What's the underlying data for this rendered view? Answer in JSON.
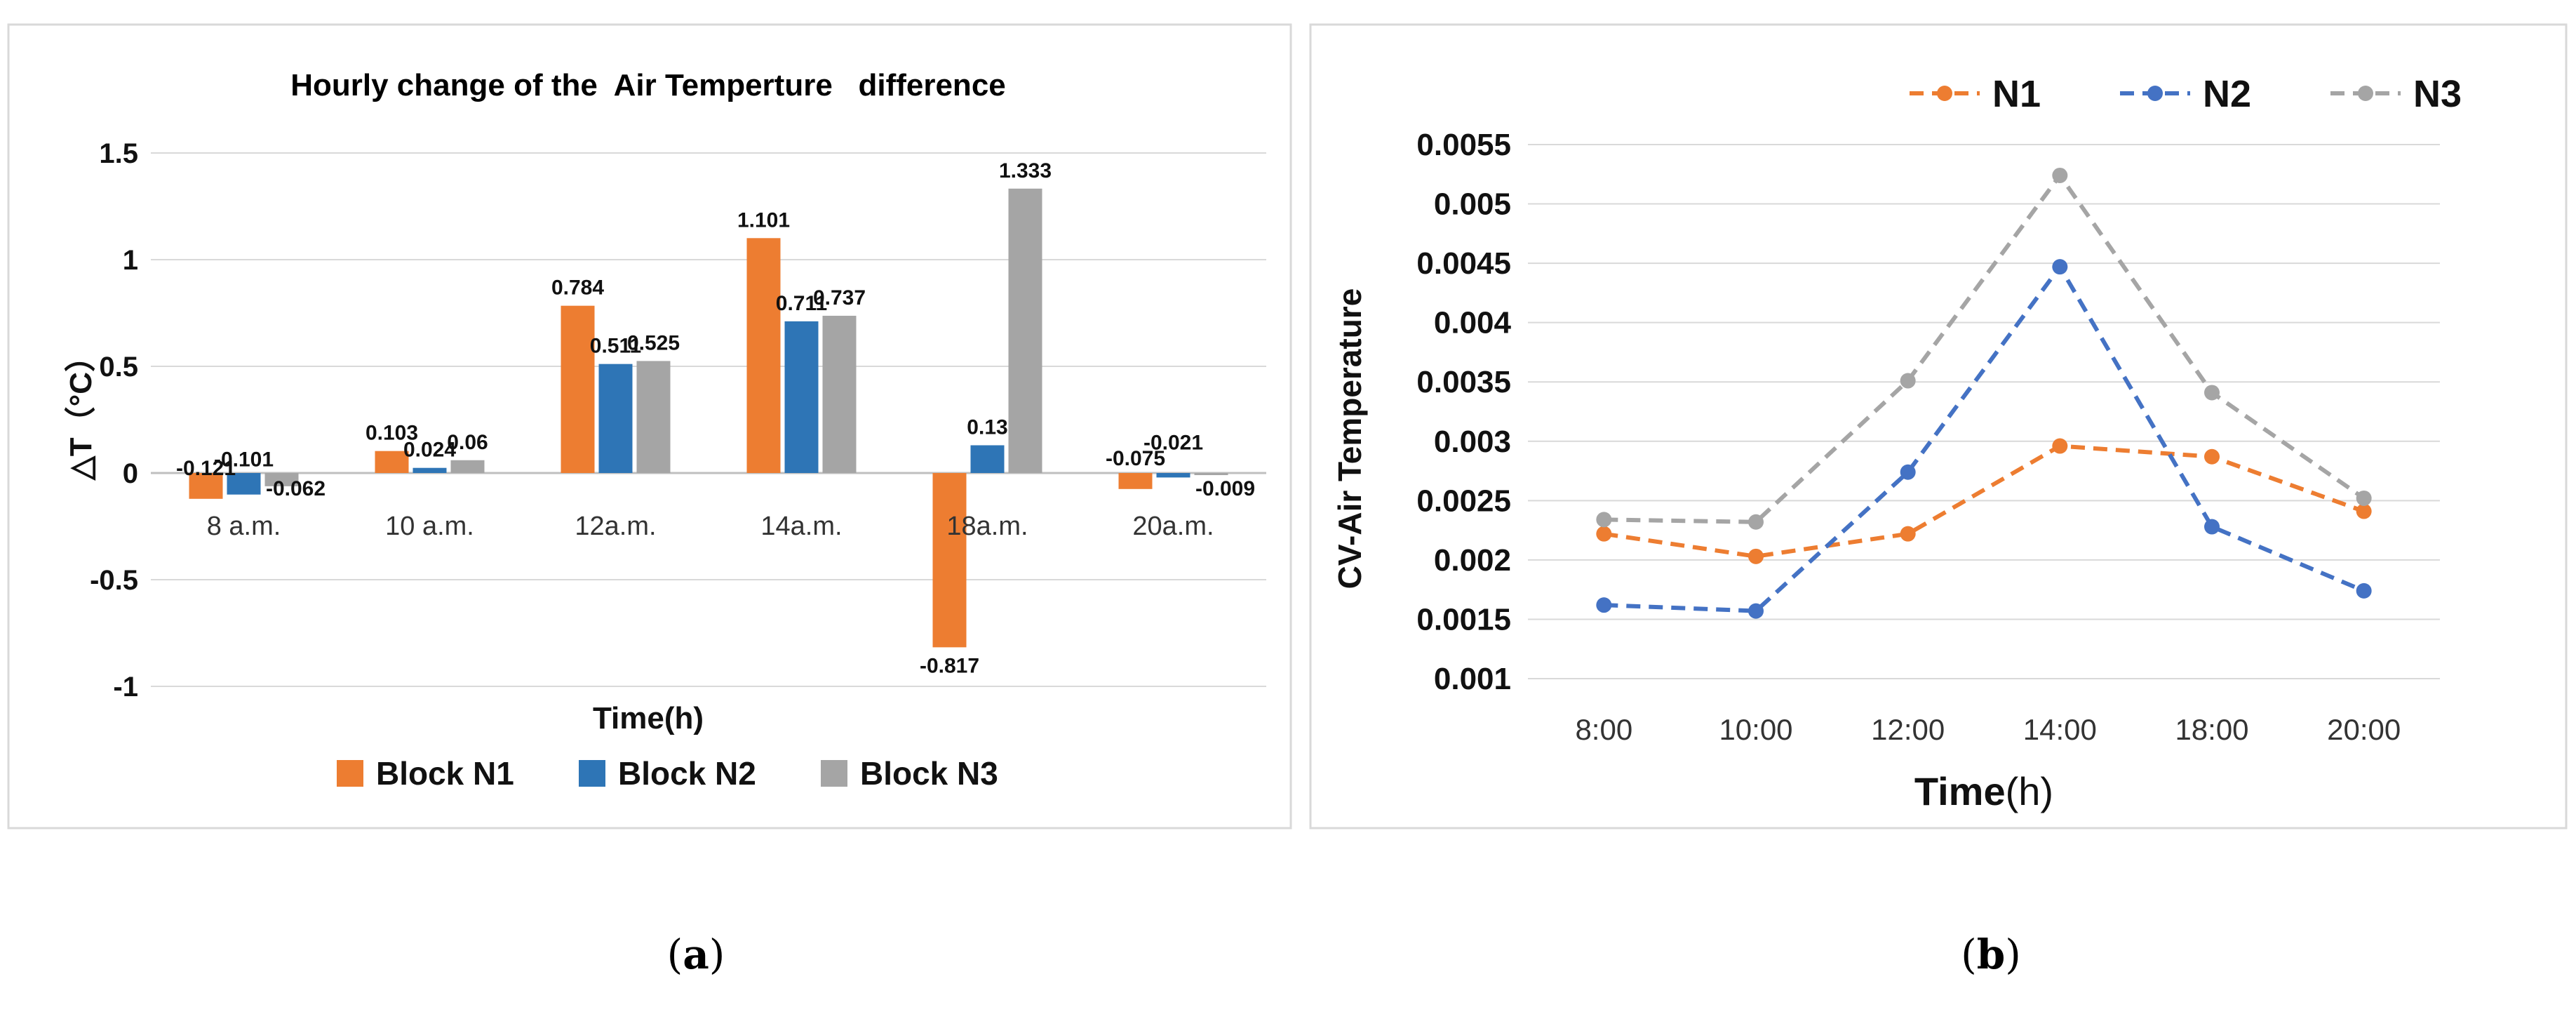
{
  "chart_data": [
    {
      "type": "bar",
      "title": "Hourly change of the  Air Temperture   difference",
      "xlabel": "Time(h)",
      "ylabel": "△T（°C）",
      "ylim": [
        -1,
        1.5
      ],
      "yticks": [
        "1.5",
        "1",
        "0.5",
        "0",
        "-0.5",
        "-1"
      ],
      "categories": [
        "8 a.m.",
        "10 a.m.",
        "12a.m.",
        "14a.m.",
        "18a.m.",
        "20a.m."
      ],
      "series": [
        {
          "name": "Block N1",
          "color": "#ED7D31",
          "values": [
            -0.121,
            0.103,
            0.784,
            1.101,
            -0.817,
            -0.075
          ],
          "labels": [
            "-0.121",
            "0.103",
            "0.784",
            "1.101",
            "-0.817",
            "-0.075"
          ]
        },
        {
          "name": "Block N2",
          "color": "#2E75B6",
          "values": [
            -0.101,
            0.024,
            0.511,
            0.711,
            0.13,
            -0.021
          ],
          "labels": [
            "-0.101",
            "0.024",
            "0.511",
            "0.711",
            "0.13",
            "-0.021"
          ]
        },
        {
          "name": "Block N3",
          "color": "#A5A5A5",
          "values": [
            -0.062,
            0.06,
            0.525,
            0.737,
            1.333,
            -0.009
          ],
          "labels": [
            "-0.062",
            "0.06",
            "0.525",
            "0.737",
            "1.333",
            "-0.009"
          ]
        }
      ],
      "grid": true,
      "legend": "bottom"
    },
    {
      "type": "line",
      "title": "",
      "xlabel_main": "Time",
      "xlabel_unit": "(h)",
      "ylabel": "CV-Air Temperature",
      "ylim": [
        0.001,
        0.0055
      ],
      "yticks": [
        "0.0055",
        "0.005",
        "0.0045",
        "0.004",
        "0.0035",
        "0.003",
        "0.0025",
        "0.002",
        "0.0015",
        "0.001"
      ],
      "categories": [
        "8:00",
        "10:00",
        "12:00",
        "14:00",
        "18:00",
        "20:00"
      ],
      "series": [
        {
          "name": "N1",
          "color": "#ED7D31",
          "values": [
            0.00222,
            0.00203,
            0.00222,
            0.00296,
            0.00287,
            0.00241
          ]
        },
        {
          "name": "N2",
          "color": "#4472C4",
          "values": [
            0.00162,
            0.00157,
            0.00274,
            0.00447,
            0.00228,
            0.00174
          ]
        },
        {
          "name": "N3",
          "color": "#A5A5A5",
          "values": [
            0.00234,
            0.00232,
            0.00351,
            0.00524,
            0.00341,
            0.00252
          ]
        }
      ],
      "line_style": "dashed",
      "grid": true,
      "legend": "top"
    }
  ],
  "panel_labels": {
    "a": {
      "open": "(",
      "letter": "a",
      "close": ")"
    },
    "b": {
      "open": "(",
      "letter": "b",
      "close": ")"
    }
  },
  "colors": {
    "frame": "#D9D9D9",
    "grid": "#D9D9D9",
    "zero_line": "#BFBFBF"
  }
}
